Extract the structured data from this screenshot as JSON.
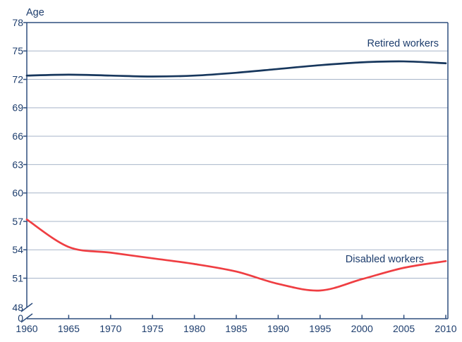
{
  "chart_data": {
    "type": "line",
    "title": "Age",
    "x": [
      1960,
      1965,
      1970,
      1975,
      1980,
      1985,
      1990,
      1995,
      2000,
      2005,
      2010
    ],
    "series": [
      {
        "name": "Retired workers",
        "color": "#17375d",
        "values": [
          72.4,
          72.5,
          72.4,
          72.3,
          72.4,
          72.7,
          73.1,
          73.5,
          73.8,
          73.9,
          73.7
        ]
      },
      {
        "name": "Disabled workers",
        "color": "#ef3e42",
        "values": [
          57.2,
          54.3,
          53.7,
          53.1,
          52.5,
          51.7,
          50.4,
          49.7,
          50.9,
          52.1,
          52.8
        ]
      }
    ],
    "y_gridlines": [
      75,
      72,
      69,
      66,
      63,
      60,
      57,
      54,
      51
    ],
    "y_tick_values": [
      78,
      75,
      72,
      69,
      66,
      63,
      60,
      57,
      54,
      51,
      48,
      0
    ],
    "ylim": [
      48,
      78
    ],
    "axis_break": true,
    "grid": "horizontal",
    "legend_position": "inline-labels",
    "colors": {
      "axis": "#2e4e7e",
      "grid": "#a7b5c9",
      "text": "#1d3d6d",
      "background": "#ffffff"
    }
  }
}
